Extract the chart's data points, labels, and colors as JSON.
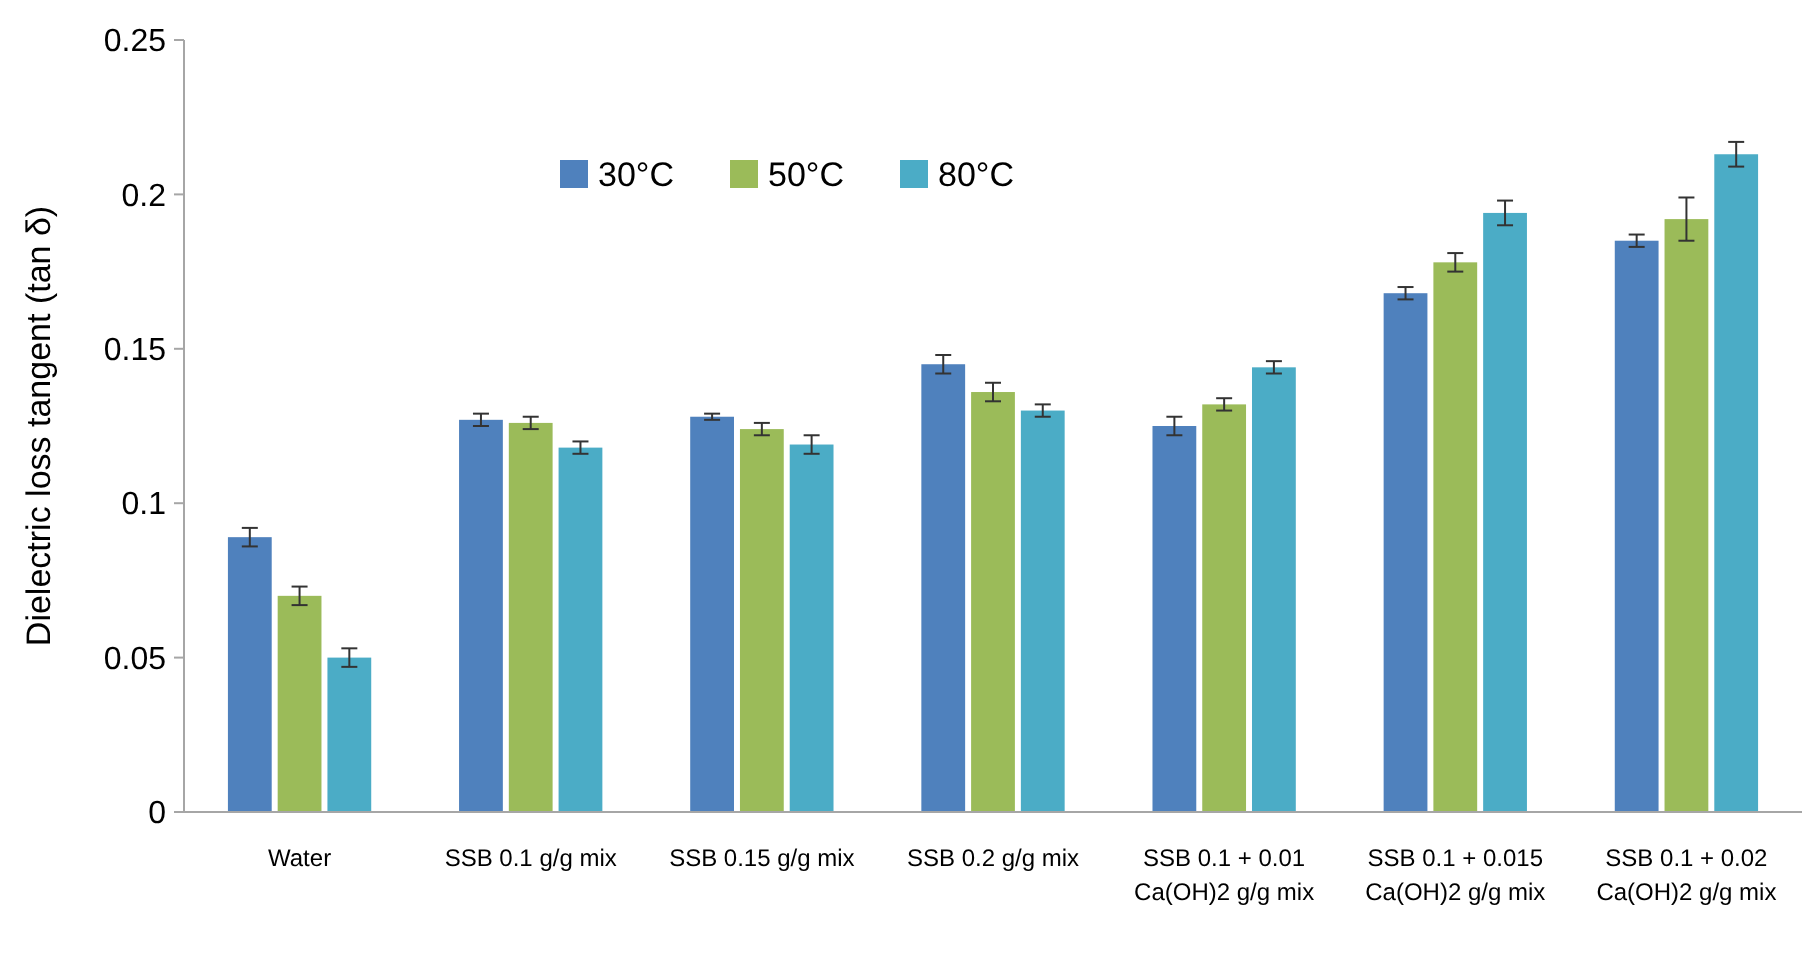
{
  "chart_data": {
    "type": "bar",
    "ylabel": "Dielectric loss tangent (tan δ)",
    "categories": [
      "Water",
      "SSB 0.1 g/g mix",
      "SSB 0.15 g/g mix",
      "SSB 0.2 g/g mix",
      "SSB 0.1 + 0.01 Ca(OH)2 g/g mix",
      "SSB 0.1 + 0.015 Ca(OH)2 g/g mix",
      "SSB 0.1 + 0.02 Ca(OH)2 g/g mix"
    ],
    "series": [
      {
        "name": "30°C",
        "color": "#4f81bd",
        "values": [
          0.089,
          0.127,
          0.128,
          0.145,
          0.125,
          0.168,
          0.185
        ],
        "errors": [
          0.003,
          0.002,
          0.001,
          0.003,
          0.003,
          0.002,
          0.002
        ]
      },
      {
        "name": "50°C",
        "color": "#9bbb59",
        "values": [
          0.07,
          0.126,
          0.124,
          0.136,
          0.132,
          0.178,
          0.192
        ],
        "errors": [
          0.003,
          0.002,
          0.002,
          0.003,
          0.002,
          0.003,
          0.007
        ]
      },
      {
        "name": "80°C",
        "color": "#4bacc6",
        "values": [
          0.05,
          0.118,
          0.119,
          0.13,
          0.144,
          0.194,
          0.213
        ],
        "errors": [
          0.003,
          0.002,
          0.003,
          0.002,
          0.002,
          0.004,
          0.004
        ]
      }
    ],
    "ylim": [
      0,
      0.25
    ],
    "yticks": [
      0,
      0.05,
      0.1,
      0.15,
      0.2,
      0.25
    ],
    "grid": false,
    "legend": "top left"
  }
}
